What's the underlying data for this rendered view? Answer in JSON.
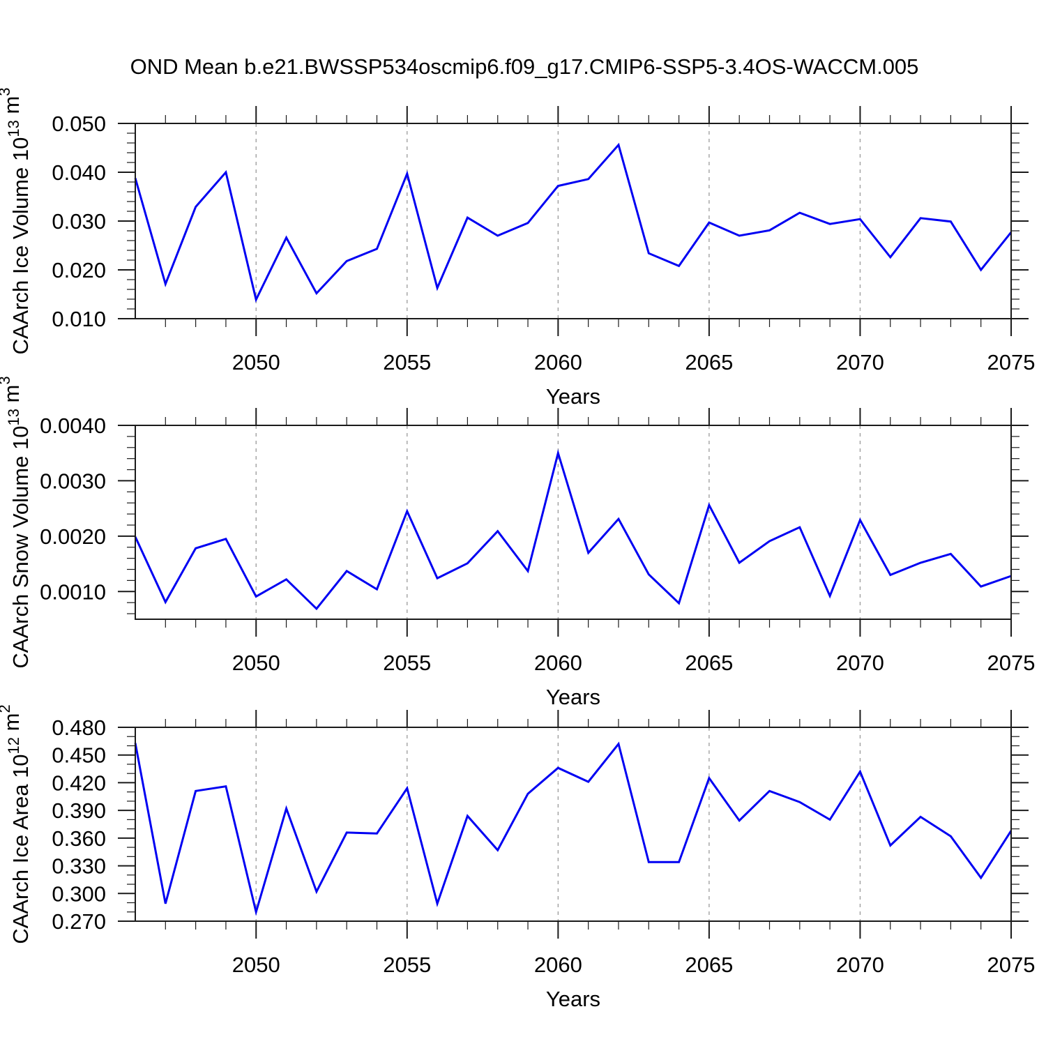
{
  "title": "OND Mean b.e21.BWSSP534oscmip6.f09_g17.CMIP6-SSP5-3.4OS-WACCM.005",
  "colors": {
    "line": "#0000f2",
    "frame": "#1a1a1a",
    "tick": "#1a1a1a",
    "grid": "#9a9a9a",
    "text": "#000000",
    "background": "#ffffff"
  },
  "x_axis": {
    "label": "Years",
    "start": 2046,
    "end": 2075,
    "major_ticks": [
      2050,
      2055,
      2060,
      2065,
      2070,
      2075
    ],
    "major_tick_labels": [
      "2050",
      "2055",
      "2060",
      "2065",
      "2070",
      "2075"
    ],
    "gridlines": [
      2050,
      2055,
      2060,
      2065,
      2070
    ]
  },
  "chart_data": [
    {
      "type": "line",
      "name": "ice-volume",
      "ylabel_plain": "CAArch Ice Volume 10^13 m^3",
      "ylabel_parts": [
        {
          "text": "CAArch Ice Volume 10",
          "sup": false
        },
        {
          "text": "13",
          "sup": true
        },
        {
          "text": " m",
          "sup": false
        },
        {
          "text": "3",
          "sup": true
        }
      ],
      "xlabel": "Years",
      "ylim": [
        0.01,
        0.05
      ],
      "ytick_values": [
        0.05,
        0.04,
        0.03,
        0.02,
        0.01
      ],
      "ytick_labels": [
        "0.050",
        "0.040",
        "0.030",
        "0.020",
        "0.010"
      ],
      "yminor_step": 0.002,
      "years": [
        2046,
        2047,
        2048,
        2049,
        2050,
        2051,
        2052,
        2053,
        2054,
        2055,
        2056,
        2057,
        2058,
        2059,
        2060,
        2061,
        2062,
        2063,
        2064,
        2065,
        2066,
        2067,
        2068,
        2069,
        2070,
        2071,
        2072,
        2073,
        2074,
        2075
      ],
      "values": [
        0.0388,
        0.0171,
        0.0329,
        0.04,
        0.0139,
        0.0266,
        0.0152,
        0.0218,
        0.0243,
        0.0397,
        0.0163,
        0.0307,
        0.027,
        0.0296,
        0.0372,
        0.0386,
        0.0456,
        0.0234,
        0.0208,
        0.0297,
        0.027,
        0.0281,
        0.0317,
        0.0294,
        0.0304,
        0.0226,
        0.0306,
        0.0299,
        0.02,
        0.0277
      ]
    },
    {
      "type": "line",
      "name": "snow-volume",
      "ylabel_plain": "CAArch Snow Volume 10^13 m^3",
      "ylabel_parts": [
        {
          "text": "CAArch Snow Volume 10",
          "sup": false
        },
        {
          "text": "13",
          "sup": true
        },
        {
          "text": " m",
          "sup": false
        },
        {
          "text": "3",
          "sup": true
        }
      ],
      "xlabel": "Years",
      "ylim": [
        0.0005,
        0.004
      ],
      "ytick_values": [
        0.004,
        0.003,
        0.002,
        0.001
      ],
      "ytick_labels": [
        "0.0040",
        "0.0030",
        "0.0020",
        "0.0010"
      ],
      "yminor_step": 0.0002,
      "years": [
        2046,
        2047,
        2048,
        2049,
        2050,
        2051,
        2052,
        2053,
        2054,
        2055,
        2056,
        2057,
        2058,
        2059,
        2060,
        2061,
        2062,
        2063,
        2064,
        2065,
        2066,
        2067,
        2068,
        2069,
        2070,
        2071,
        2072,
        2073,
        2074,
        2075
      ],
      "values": [
        0.00199,
        0.00081,
        0.00178,
        0.00195,
        0.00091,
        0.00122,
        0.00069,
        0.00137,
        0.00104,
        0.00245,
        0.00124,
        0.00151,
        0.00209,
        0.00137,
        0.0035,
        0.0017,
        0.00231,
        0.00131,
        0.00079,
        0.00256,
        0.00152,
        0.00191,
        0.00216,
        0.00092,
        0.00229,
        0.0013,
        0.00152,
        0.00168,
        0.00109,
        0.00128
      ]
    },
    {
      "type": "line",
      "name": "ice-area",
      "ylabel_plain": "CAArch Ice Area 10^12 m^2",
      "ylabel_parts": [
        {
          "text": "CAArch Ice Area 10",
          "sup": false
        },
        {
          "text": "12",
          "sup": true
        },
        {
          "text": " m",
          "sup": false
        },
        {
          "text": "2",
          "sup": true
        }
      ],
      "xlabel": "Years",
      "ylim": [
        0.27,
        0.48
      ],
      "ytick_values": [
        0.48,
        0.45,
        0.42,
        0.39,
        0.36,
        0.33,
        0.3,
        0.27
      ],
      "ytick_labels": [
        "0.480",
        "0.450",
        "0.420",
        "0.390",
        "0.360",
        "0.330",
        "0.300",
        "0.270"
      ],
      "yminor_step": 0.01,
      "years": [
        2046,
        2047,
        2048,
        2049,
        2050,
        2051,
        2052,
        2053,
        2054,
        2055,
        2056,
        2057,
        2058,
        2059,
        2060,
        2061,
        2062,
        2063,
        2064,
        2065,
        2066,
        2067,
        2068,
        2069,
        2070,
        2071,
        2072,
        2073,
        2074,
        2075
      ],
      "values": [
        0.463,
        0.289,
        0.411,
        0.416,
        0.28,
        0.392,
        0.302,
        0.366,
        0.365,
        0.414,
        0.289,
        0.384,
        0.347,
        0.408,
        0.436,
        0.421,
        0.462,
        0.334,
        0.334,
        0.425,
        0.379,
        0.411,
        0.399,
        0.38,
        0.432,
        0.352,
        0.383,
        0.362,
        0.317,
        0.368
      ]
    }
  ]
}
